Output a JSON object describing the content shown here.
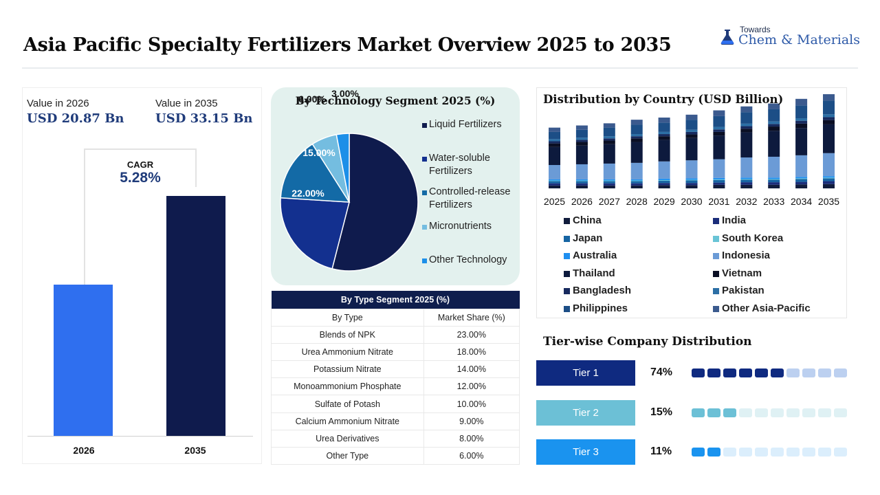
{
  "header": {
    "title": "Asia Pacific Specialty Fertilizers Market Overview 2025 to 2035",
    "logo_top": "Towards",
    "logo_main": "Chem & Materials"
  },
  "overview": {
    "label_2026": "Value in 2026",
    "value_2026": "USD 20.87 Bn",
    "label_2035": "Value in 2035",
    "value_2035": "USD 33.15 Bn",
    "cagr_label": "CAGR",
    "cagr_value": "5.28%",
    "bars": [
      {
        "label": "2026",
        "value": 20.87,
        "color": "#2f6fef"
      },
      {
        "label": "2035",
        "value": 33.15,
        "color": "#0f1b4d"
      }
    ]
  },
  "technology": {
    "title": "By Technology Segment 2025 (%)"
  },
  "type_table": {
    "title": "By Type Segment 2025 (%)",
    "col1": "By Type",
    "col2": "Market Share (%)",
    "rows": [
      [
        "Blends of NPK",
        "23.00%"
      ],
      [
        "Urea Ammonium Nitrate",
        "18.00%"
      ],
      [
        "Potassium Nitrate",
        "14.00%"
      ],
      [
        "Monoammonium Phosphate",
        "12.00%"
      ],
      [
        "Sulfate of Potash",
        "10.00%"
      ],
      [
        "Calcium Ammonium Nitrate",
        "9.00%"
      ],
      [
        "Urea Derivatives",
        "8.00%"
      ],
      [
        "Other Type",
        "6.00%"
      ]
    ]
  },
  "country": {
    "title": "Distribution by Country (USD Billion)"
  },
  "tiers": {
    "title": "Tier-wise Company Distribution",
    "items": [
      {
        "label": "Tier 1",
        "value": "74%",
        "filled": 6,
        "pill": "#0f2a80",
        "on": "#0f2a80",
        "off": "#bcd0f0"
      },
      {
        "label": "Tier 2",
        "value": "15%",
        "filled": 3,
        "pill": "#6cc0d6",
        "on": "#6cc0d6",
        "off": "#dff1f4"
      },
      {
        "label": "Tier 3",
        "value": "11%",
        "filled": 2,
        "pill": "#1a93ef",
        "on": "#1a93ef",
        "off": "#dbeefc"
      }
    ]
  },
  "chart_data": [
    {
      "type": "bar",
      "categories": [
        "2026",
        "2035"
      ],
      "values": [
        20.87,
        33.15
      ]
    },
    {
      "type": "pie",
      "title": "By Technology Segment 2025 (%)",
      "categories": [
        "Liquid Fertilizers",
        "Water-soluble Fertilizers",
        "Controlled-release Fertilizers",
        "Micronutrients",
        "Other Technology"
      ],
      "values": [
        54.0,
        22.0,
        15.0,
        6.0,
        3.0
      ],
      "labels": [
        "54.00%",
        "22.00%",
        "15.00%",
        "6.00%",
        "3.00%"
      ],
      "colors": [
        "#0f1b4d",
        "#13308f",
        "#136aa6",
        "#74bde0",
        "#1c8fe8"
      ]
    },
    {
      "type": "bar",
      "stacked": true,
      "title": "Distribution by Country (USD Billion)",
      "categories": [
        "2025",
        "2026",
        "2027",
        "2028",
        "2029",
        "2030",
        "2031",
        "2032",
        "2033",
        "2034",
        "2035"
      ],
      "series": [
        {
          "name": "China",
          "color": "#111c3c",
          "values": [
            0.4,
            0.4,
            0.4,
            0.4,
            0.45,
            0.45,
            0.5,
            0.5,
            0.5,
            0.55,
            0.6
          ]
        },
        {
          "name": "India",
          "color": "#1b2d7a",
          "values": [
            0.3,
            0.3,
            0.3,
            0.3,
            0.3,
            0.3,
            0.3,
            0.35,
            0.35,
            0.35,
            0.4
          ]
        },
        {
          "name": "Japan",
          "color": "#1765a3",
          "values": [
            0.3,
            0.3,
            0.3,
            0.3,
            0.3,
            0.35,
            0.35,
            0.35,
            0.35,
            0.4,
            0.4
          ]
        },
        {
          "name": "South Korea",
          "color": "#69c4d6",
          "values": [
            0.1,
            0.1,
            0.1,
            0.1,
            0.1,
            0.1,
            0.1,
            0.1,
            0.1,
            0.1,
            0.1
          ]
        },
        {
          "name": "Australia",
          "color": "#1f8ff0",
          "values": [
            0.15,
            0.15,
            0.15,
            0.15,
            0.2,
            0.2,
            0.2,
            0.2,
            0.2,
            0.2,
            0.2
          ]
        },
        {
          "name": "Indonesia",
          "color": "#6b9bd6",
          "values": [
            2.0,
            2.1,
            2.2,
            2.3,
            2.4,
            2.5,
            2.6,
            2.8,
            2.9,
            3.0,
            3.2
          ]
        },
        {
          "name": "Thailand",
          "color": "#0d1a3d",
          "values": [
            2.5,
            2.6,
            2.7,
            2.9,
            3.0,
            3.1,
            3.3,
            3.5,
            3.6,
            3.8,
            4.0
          ]
        },
        {
          "name": "Vietnam",
          "color": "#0a0f24",
          "values": [
            0.5,
            0.5,
            0.5,
            0.5,
            0.5,
            0.5,
            0.5,
            0.5,
            0.6,
            0.6,
            0.6
          ]
        },
        {
          "name": "Bangladesh",
          "color": "#172a5e",
          "values": [
            0.3,
            0.3,
            0.3,
            0.3,
            0.3,
            0.35,
            0.35,
            0.35,
            0.35,
            0.4,
            0.4
          ]
        },
        {
          "name": "Pakistan",
          "color": "#2c6fa5",
          "values": [
            0.3,
            0.3,
            0.3,
            0.3,
            0.3,
            0.3,
            0.35,
            0.35,
            0.35,
            0.35,
            0.4
          ]
        },
        {
          "name": "Philippines",
          "color": "#1c4e86",
          "values": [
            1.0,
            1.1,
            1.2,
            1.3,
            1.3,
            1.4,
            1.5,
            1.6,
            1.7,
            1.8,
            1.9
          ]
        },
        {
          "name": "Other Asia-Pacific",
          "color": "#3b5a8e",
          "values": [
            0.6,
            0.6,
            0.6,
            0.7,
            0.7,
            0.7,
            0.8,
            0.8,
            0.8,
            0.9,
            0.9
          ]
        }
      ]
    }
  ]
}
